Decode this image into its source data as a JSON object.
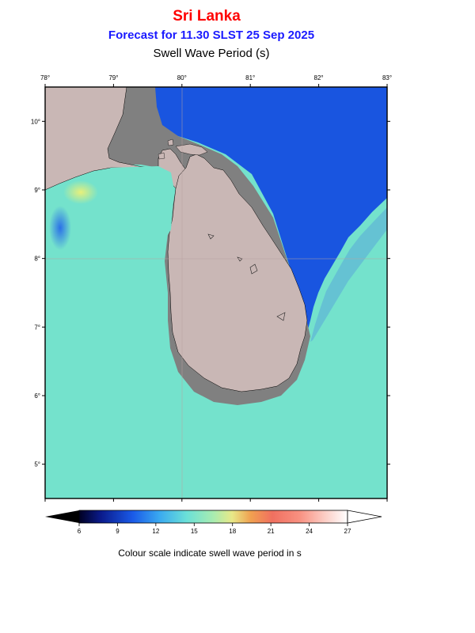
{
  "header": {
    "title": "Sri Lanka",
    "subtitle": "Forecast for  11.30 SLST 25 Sep 2025",
    "variable": "Swell Wave Period (s)"
  },
  "map": {
    "lon_ticks": [
      "78°",
      "79°",
      "80°",
      "81°",
      "82°",
      "83°"
    ],
    "lat_ticks": [
      "10°",
      "9°",
      "8°",
      "7°",
      "6°",
      "5°"
    ],
    "colors": {
      "land": "#c9b7b5",
      "shelf": "#808080",
      "sea_main": "#74e2cc",
      "sea_deep_blue": "#1955e0",
      "frame": "#000000"
    }
  },
  "colorbar": {
    "tick_labels": [
      "6",
      "9",
      "12",
      "15",
      "18",
      "21",
      "24",
      "27"
    ],
    "caption": "Colour scale indicate swell wave period in s"
  }
}
